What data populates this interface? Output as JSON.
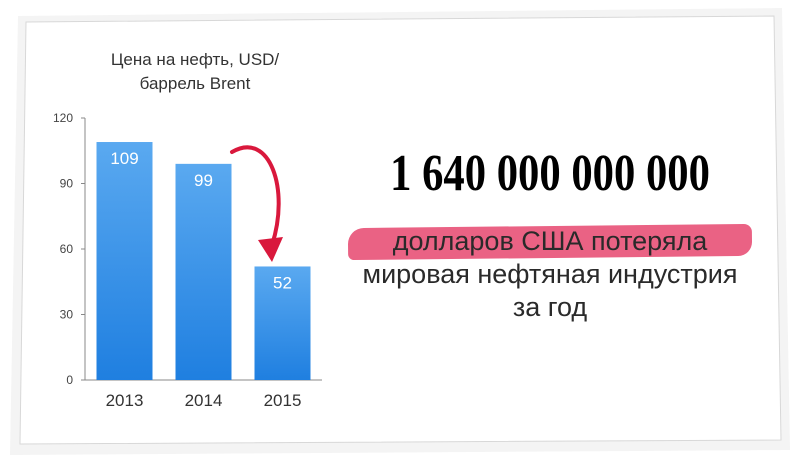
{
  "chart_data": {
    "type": "bar",
    "title_lines": [
      "Цена на нефть, USD/",
      "баррель Brent"
    ],
    "categories": [
      "2013",
      "2014",
      "2015"
    ],
    "values": [
      109,
      99,
      52
    ],
    "data_labels": [
      "109",
      "99",
      "52"
    ],
    "ylim": [
      0,
      120
    ],
    "yticks": [
      0,
      30,
      60,
      90,
      120
    ],
    "grid": false,
    "legend": "none",
    "bar_color": "#2e8ee8",
    "arrow_color": "#d9183c",
    "annotation": "arrow from 2014 bar to 2015 bar"
  },
  "headline": {
    "number": "1 640 000 000 000",
    "line1": "долларов США потеряла",
    "line2": "мировая нефтяная индустрия",
    "line3": "за год",
    "highlight_color": "#e8557a"
  }
}
